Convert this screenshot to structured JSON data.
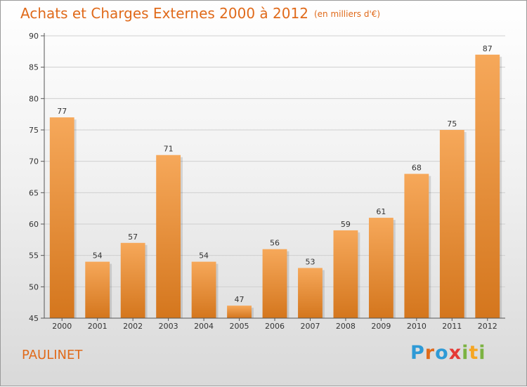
{
  "header": {
    "title": "Achats et Charges Externes 2000 à 2012",
    "unit": "(en milliers d'€)"
  },
  "footer": {
    "commune": "PAULINET",
    "logo_letters": [
      "P",
      "r",
      "o",
      "x",
      "i",
      "t",
      "i"
    ],
    "logo_colors": [
      "#2e9ad6",
      "#e06a1a",
      "#2e9ad6",
      "#e53935",
      "#7cb342",
      "#f6a623",
      "#7cb342"
    ]
  },
  "colors": {
    "bar_top": "#f6a85a",
    "bar_bottom": "#d4761d",
    "accent": "#e06a1a"
  },
  "chart_data": {
    "type": "bar",
    "title": "Achats et Charges Externes 2000 à 2012",
    "subtitle": "(en milliers d'€)",
    "categories": [
      "2000",
      "2001",
      "2002",
      "2003",
      "2004",
      "2005",
      "2006",
      "2007",
      "2008",
      "2009",
      "2010",
      "2011",
      "2012"
    ],
    "values": [
      77,
      54,
      57,
      71,
      54,
      47,
      56,
      53,
      59,
      61,
      68,
      75,
      87
    ],
    "ylim": [
      45,
      90
    ],
    "yticks": [
      45,
      50,
      55,
      60,
      65,
      70,
      75,
      80,
      85,
      90
    ],
    "grid": true,
    "legend": "none"
  }
}
